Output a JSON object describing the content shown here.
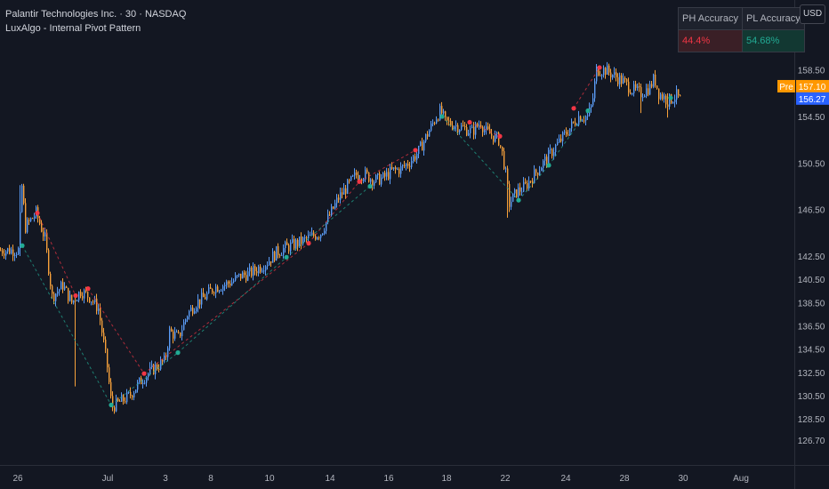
{
  "header": {
    "symbol_line": "Palantir Technologies Inc. · 30 · NASDAQ",
    "indicator_name": "LuxAlgo - Internal Pivot Pattern"
  },
  "accuracy_table": {
    "ph_header": "PH Accuracy",
    "pl_header": "PL Accuracy",
    "ph_value": "44.4%",
    "pl_value": "54.68%"
  },
  "currency_button": "USD",
  "price_labels": {
    "pre_tag": "Pre",
    "pre_price": "157.10",
    "last_price": "156.27"
  },
  "colors": {
    "background": "#131722",
    "up_candle": "#5b9cf6",
    "down_candle": "#f7a13b",
    "pivot_high": "#f23645",
    "pivot_low": "#22ab94",
    "pre_tag_bg": "#ff9800",
    "last_price_bg": "#2962ff"
  },
  "chart_data": {
    "type": "candlestick",
    "y_ticks": [
      126.7,
      128.5,
      130.5,
      132.5,
      134.5,
      136.5,
      138.5,
      140.5,
      142.5,
      146.5,
      150.5,
      154.5,
      156.5,
      158.5
    ],
    "ylim": [
      125.0,
      162.6
    ],
    "x_labels": [
      "26",
      "Jul",
      "3",
      "8",
      "10",
      "14",
      "16",
      "18",
      "22",
      "24",
      "28",
      "30",
      "Aug"
    ],
    "grid": false,
    "close_path": [
      [
        0,
        143.0
      ],
      [
        20,
        143.0
      ],
      [
        24,
        148.5
      ],
      [
        28,
        145.0
      ],
      [
        40,
        146.2
      ],
      [
        50,
        144.0
      ],
      [
        58,
        139.0
      ],
      [
        70,
        140.0
      ],
      [
        80,
        138.5
      ],
      [
        90,
        139.5
      ],
      [
        100,
        139.0
      ],
      [
        110,
        138.0
      ],
      [
        120,
        133.0
      ],
      [
        125,
        129.5
      ],
      [
        135,
        130.0
      ],
      [
        145,
        130.5
      ],
      [
        160,
        132.0
      ],
      [
        175,
        133.0
      ],
      [
        185,
        133.5
      ],
      [
        190,
        136.0
      ],
      [
        200,
        135.5
      ],
      [
        210,
        137.5
      ],
      [
        220,
        138.5
      ],
      [
        230,
        139.0
      ],
      [
        240,
        139.8
      ],
      [
        250,
        140.0
      ],
      [
        260,
        140.3
      ],
      [
        270,
        140.8
      ],
      [
        280,
        141.0
      ],
      [
        290,
        141.5
      ],
      [
        300,
        142.0
      ],
      [
        310,
        142.8
      ],
      [
        320,
        143.2
      ],
      [
        330,
        143.5
      ],
      [
        340,
        143.8
      ],
      [
        350,
        144.2
      ],
      [
        360,
        144.5
      ],
      [
        370,
        146.0
      ],
      [
        380,
        147.5
      ],
      [
        390,
        148.5
      ],
      [
        400,
        149.5
      ],
      [
        410,
        149.5
      ],
      [
        420,
        149.0
      ],
      [
        430,
        149.2
      ],
      [
        440,
        149.8
      ],
      [
        450,
        150.0
      ],
      [
        460,
        150.6
      ],
      [
        470,
        151.5
      ],
      [
        480,
        153.0
      ],
      [
        490,
        154.5
      ],
      [
        495,
        155.0
      ],
      [
        500,
        154.0
      ],
      [
        510,
        153.8
      ],
      [
        520,
        153.5
      ],
      [
        530,
        153.2
      ],
      [
        540,
        154.0
      ],
      [
        545,
        153.2
      ],
      [
        550,
        153.0
      ],
      [
        560,
        152.5
      ],
      [
        565,
        151.0
      ],
      [
        568,
        149.5
      ],
      [
        572,
        147.0
      ],
      [
        580,
        148.0
      ],
      [
        590,
        148.5
      ],
      [
        600,
        149.5
      ],
      [
        610,
        150.5
      ],
      [
        620,
        151.5
      ],
      [
        630,
        152.5
      ],
      [
        640,
        153.5
      ],
      [
        650,
        154.5
      ],
      [
        660,
        154.5
      ],
      [
        665,
        155.5
      ],
      [
        670,
        158.5
      ],
      [
        680,
        158.5
      ],
      [
        690,
        158.0
      ],
      [
        700,
        157.5
      ],
      [
        710,
        156.8
      ],
      [
        720,
        156.5
      ],
      [
        730,
        157.0
      ],
      [
        735,
        157.8
      ],
      [
        740,
        156.5
      ],
      [
        745,
        156.2
      ],
      [
        750,
        155.8
      ],
      [
        760,
        156.3
      ],
      [
        765,
        155.8
      ]
    ],
    "spikes": [
      {
        "bar_x": 22,
        "high": 148.6,
        "low": 142.5
      },
      {
        "bar_x": 84,
        "high": 139.2,
        "low": 131.3
      },
      {
        "bar_x": 570,
        "high": 149.7,
        "low": 145.8
      },
      {
        "bar_x": 720,
        "high": 156.8,
        "low": 154.8
      },
      {
        "bar_x": 750,
        "high": 156.5,
        "low": 154.4
      }
    ],
    "pivot_highs": [
      {
        "bar_x": 42,
        "price": 146.2
      },
      {
        "bar_x": 85,
        "price": 139.1
      },
      {
        "bar_x": 99,
        "price": 139.7
      },
      {
        "bar_x": 162,
        "price": 132.4
      },
      {
        "bar_x": 347,
        "price": 143.6
      },
      {
        "bar_x": 404,
        "price": 148.9
      },
      {
        "bar_x": 467,
        "price": 151.6
      },
      {
        "bar_x": 528,
        "price": 154.0
      },
      {
        "bar_x": 562,
        "price": 152.8
      },
      {
        "bar_x": 645,
        "price": 155.2
      },
      {
        "bar_x": 674,
        "price": 158.7
      }
    ],
    "pivot_lows": [
      {
        "bar_x": 25,
        "price": 143.4
      },
      {
        "bar_x": 125,
        "price": 129.7
      },
      {
        "bar_x": 200,
        "price": 134.2
      },
      {
        "bar_x": 322,
        "price": 142.4
      },
      {
        "bar_x": 416,
        "price": 148.5
      },
      {
        "bar_x": 497,
        "price": 154.5
      },
      {
        "bar_x": 583,
        "price": 147.3
      },
      {
        "bar_x": 617,
        "price": 150.3
      },
      {
        "bar_x": 661,
        "price": 155.0
      },
      {
        "bar_x": 754,
        "price": 156.1
      }
    ],
    "pivot_links": [
      [
        [
          42,
          146.2
        ],
        [
          85,
          139.1
        ]
      ],
      [
        [
          99,
          139.7
        ],
        [
          162,
          132.4
        ]
      ],
      [
        [
          162,
          132.4
        ],
        [
          347,
          143.6
        ]
      ],
      [
        [
          347,
          143.6
        ],
        [
          404,
          148.9
        ]
      ],
      [
        [
          404,
          148.9
        ],
        [
          467,
          151.6
        ]
      ],
      [
        [
          528,
          154.0
        ],
        [
          562,
          152.8
        ]
      ],
      [
        [
          645,
          155.2
        ],
        [
          674,
          158.7
        ]
      ],
      [
        [
          25,
          143.4
        ],
        [
          125,
          129.7
        ]
      ],
      [
        [
          125,
          129.7
        ],
        [
          200,
          134.2
        ]
      ],
      [
        [
          200,
          134.2
        ],
        [
          322,
          142.4
        ]
      ],
      [
        [
          322,
          142.4
        ],
        [
          416,
          148.5
        ]
      ],
      [
        [
          497,
          154.5
        ],
        [
          583,
          147.3
        ]
      ],
      [
        [
          583,
          147.3
        ],
        [
          617,
          150.3
        ]
      ],
      [
        [
          617,
          150.3
        ],
        [
          661,
          155.0
        ]
      ]
    ],
    "pre_price": 157.1,
    "last_price": 156.27
  }
}
